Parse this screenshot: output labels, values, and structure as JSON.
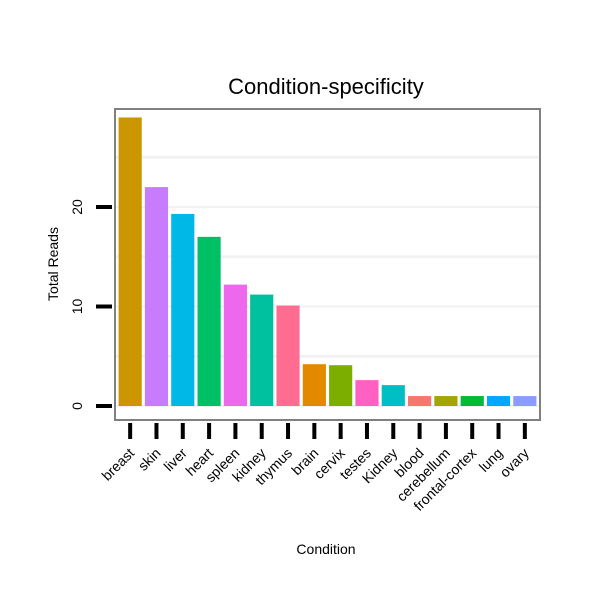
{
  "chart_data": {
    "type": "bar",
    "title": "Condition-specificity",
    "xlabel": "Condition",
    "ylabel": "Total Reads",
    "ylim": [
      -1.5,
      30
    ],
    "yticks": [
      0,
      10,
      20
    ],
    "grid": true,
    "categories": [
      "breast",
      "skin",
      "liver",
      "heart",
      "spleen",
      "kidney",
      "thymus",
      "brain",
      "cervix",
      "testes",
      "Kidney",
      "blood",
      "cerebellum",
      "frontal-cortex",
      "lung",
      "ovary"
    ],
    "values": [
      29,
      22,
      19.3,
      17,
      12.2,
      11.2,
      10.1,
      4.2,
      4.1,
      2.6,
      2.1,
      1,
      1,
      1,
      1,
      1
    ],
    "colors": [
      "#cc9600",
      "#c77cff",
      "#00b8e7",
      "#00c065",
      "#ed68ed",
      "#00c19f",
      "#ff6c91",
      "#e38900",
      "#7cae00",
      "#ff61c3",
      "#00bfc4",
      "#f8766d",
      "#a3a500",
      "#00ba38",
      "#00a9ff",
      "#8a9cff"
    ]
  }
}
